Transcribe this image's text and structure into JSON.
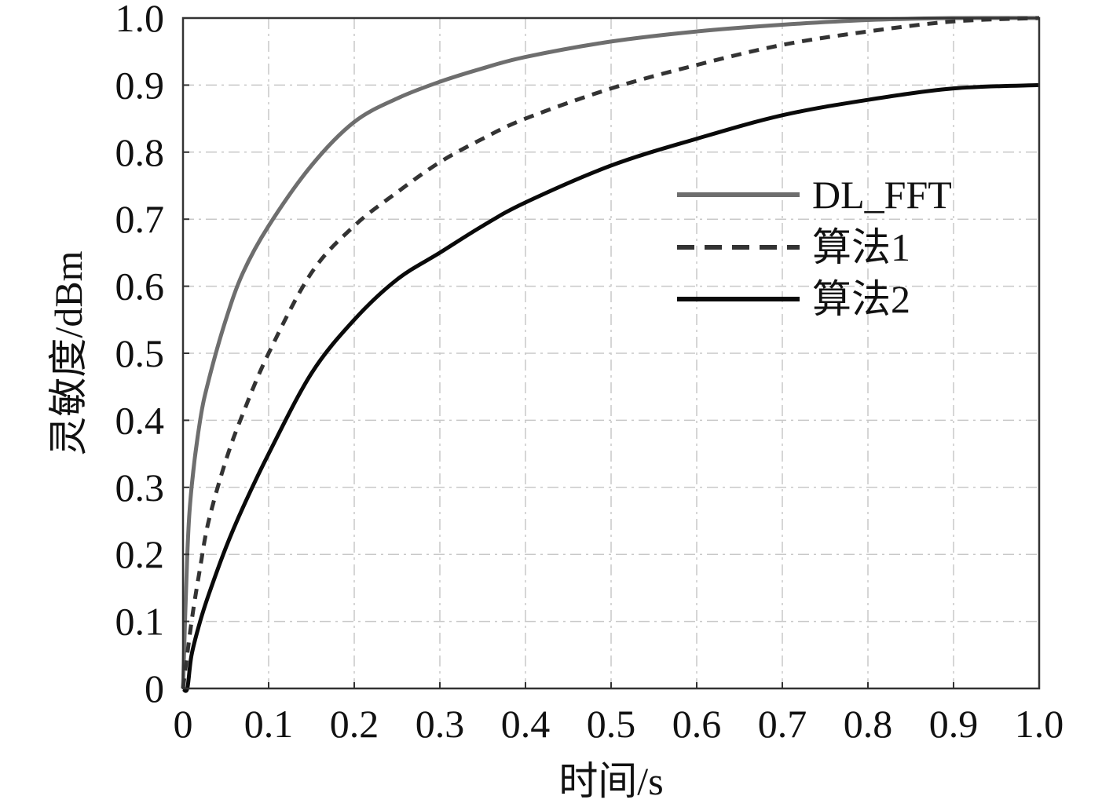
{
  "chart_data": {
    "type": "line",
    "title": "",
    "xlabel": "时间/s",
    "ylabel": "灵敏度/dBm",
    "xlim": [
      0,
      1.0
    ],
    "ylim": [
      0,
      1.0
    ],
    "xticks": [
      "0",
      "0.1",
      "0.2",
      "0.3",
      "0.4",
      "0.5",
      "0.6",
      "0.7",
      "0.8",
      "0.9",
      "1.0"
    ],
    "yticks": [
      "0",
      "0.1",
      "0.2",
      "0.3",
      "0.4",
      "0.5",
      "0.6",
      "0.7",
      "0.8",
      "0.9",
      "1.0"
    ],
    "grid": true,
    "legend_position": "center-right",
    "series": [
      {
        "name": "DL_FFT",
        "style": "solid",
        "color": "#6e6e6e",
        "x": [
          0,
          0.005,
          0.01,
          0.02,
          0.03,
          0.05,
          0.07,
          0.1,
          0.15,
          0.2,
          0.25,
          0.3,
          0.35,
          0.4,
          0.5,
          0.6,
          0.7,
          0.8,
          0.9,
          1.0
        ],
        "y": [
          0,
          0.2,
          0.3,
          0.4,
          0.46,
          0.55,
          0.62,
          0.69,
          0.78,
          0.845,
          0.88,
          0.905,
          0.925,
          0.942,
          0.965,
          0.98,
          0.99,
          0.997,
          1.0,
          1.0
        ]
      },
      {
        "name": "算法1",
        "style": "dashed",
        "color": "#333333",
        "x": [
          0,
          0.01,
          0.02,
          0.03,
          0.05,
          0.07,
          0.1,
          0.15,
          0.2,
          0.25,
          0.3,
          0.35,
          0.4,
          0.5,
          0.6,
          0.7,
          0.8,
          0.9,
          1.0
        ],
        "y": [
          0,
          0.1,
          0.18,
          0.25,
          0.34,
          0.41,
          0.5,
          0.62,
          0.69,
          0.74,
          0.785,
          0.82,
          0.85,
          0.895,
          0.93,
          0.96,
          0.98,
          0.995,
          1.0
        ]
      },
      {
        "name": "算法2",
        "style": "solid",
        "color": "#0a0a0a",
        "x": [
          0,
          0.005,
          0.01,
          0.02,
          0.03,
          0.05,
          0.07,
          0.1,
          0.15,
          0.2,
          0.25,
          0.3,
          0.35,
          0.4,
          0.5,
          0.6,
          0.7,
          0.8,
          0.9,
          1.0
        ],
        "y": [
          0,
          0.0,
          0.05,
          0.1,
          0.14,
          0.21,
          0.27,
          0.35,
          0.47,
          0.55,
          0.61,
          0.65,
          0.69,
          0.725,
          0.78,
          0.82,
          0.855,
          0.878,
          0.895,
          0.9
        ]
      }
    ]
  }
}
